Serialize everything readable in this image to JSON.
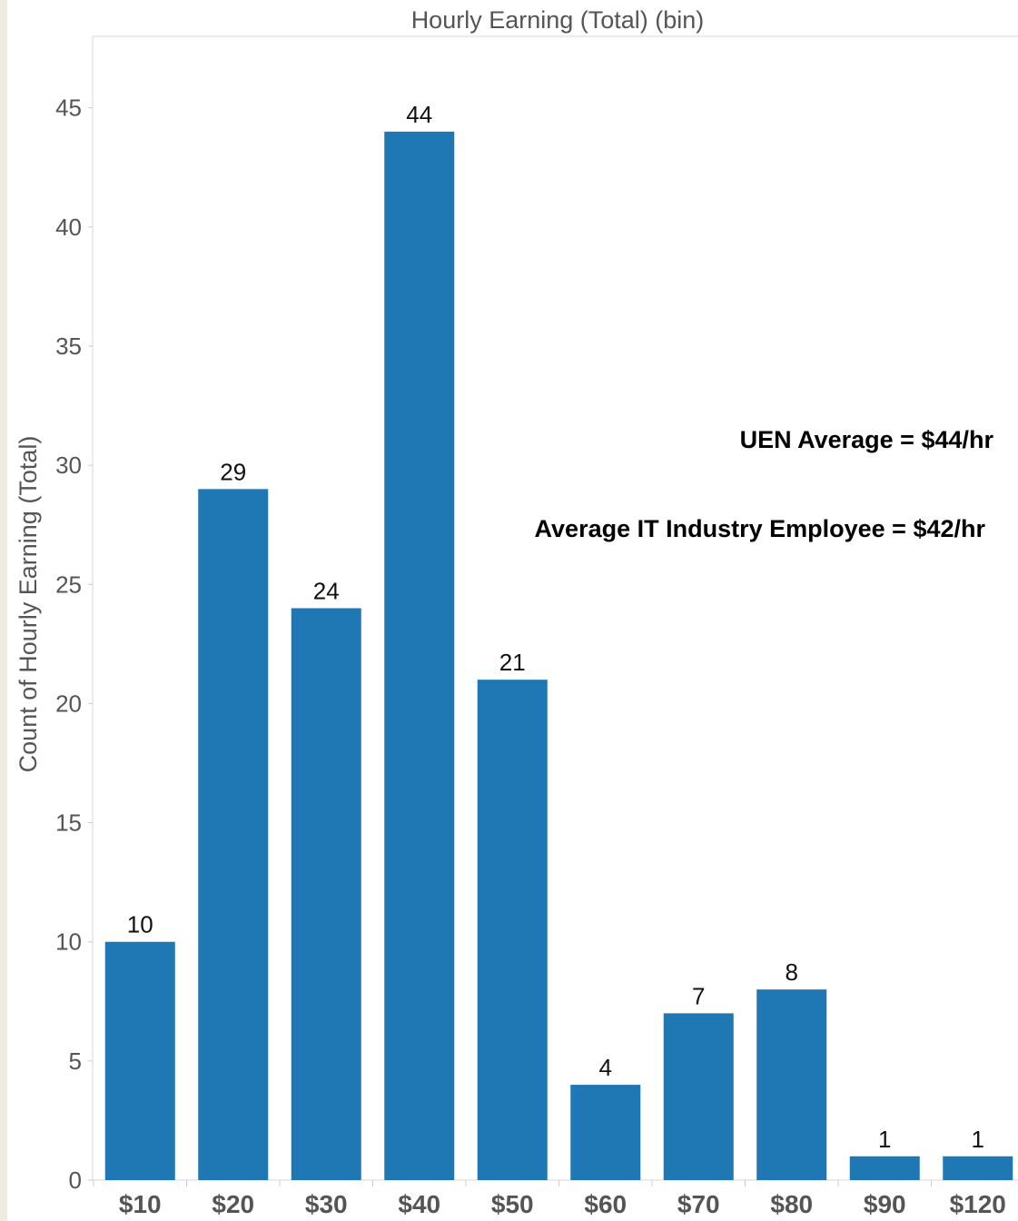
{
  "chart_data": {
    "type": "bar",
    "title": "Hourly Earning (Total) (bin)",
    "xlabel": "",
    "ylabel": "Count of Hourly Earning (Total)",
    "categories": [
      "$10",
      "$20",
      "$30",
      "$40",
      "$50",
      "$60",
      "$70",
      "$80",
      "$90",
      "$120"
    ],
    "values": [
      10,
      29,
      24,
      44,
      21,
      4,
      7,
      8,
      1,
      1
    ],
    "ylim": [
      0,
      47
    ],
    "yticks": [
      0,
      5,
      10,
      15,
      20,
      25,
      30,
      35,
      40,
      45
    ],
    "bar_color": "#1f77b4",
    "grid": false,
    "data_labels": true,
    "annotations": [
      "UEN Average = $44/hr",
      "Average IT Industry Employee = $42/hr"
    ]
  }
}
